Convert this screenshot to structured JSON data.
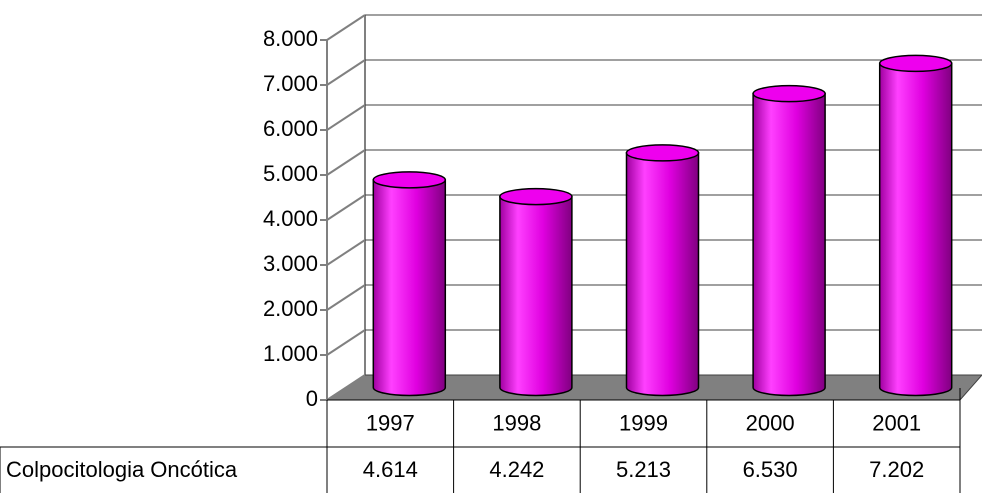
{
  "chart_data": {
    "type": "bar",
    "categories": [
      "1997",
      "1998",
      "1999",
      "2000",
      "2001"
    ],
    "series": [
      {
        "name": "Colpocitologia Oncótica",
        "color": "#ee00ee",
        "values": [
          4614,
          4242,
          5213,
          6530,
          7202
        ],
        "value_labels": [
          "4.614",
          "4.242",
          "5.213",
          "6.530",
          "7.202"
        ]
      }
    ],
    "ylim": [
      0,
      8000
    ],
    "yticks": [
      0,
      {
        "value": 1000,
        "label": "1.000"
      },
      {
        "value": 2000,
        "label": "2.000"
      },
      {
        "value": 3000,
        "label": "3.000"
      },
      {
        "value": 4000,
        "label": "4.000"
      },
      {
        "value": 5000,
        "label": "5.000"
      },
      {
        "value": 6000,
        "label": "6.000"
      },
      {
        "value": 7000,
        "label": "7.000"
      },
      {
        "value": 8000,
        "label": "8.000"
      }
    ],
    "grid": true
  }
}
